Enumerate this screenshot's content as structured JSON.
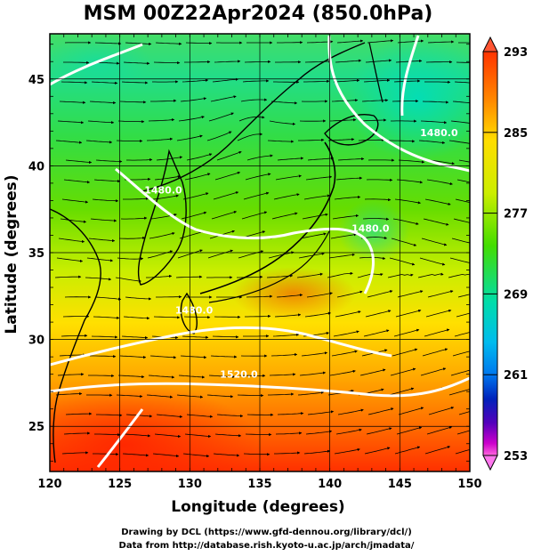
{
  "title": "MSM 00Z22Apr2024 (850.0hPa)",
  "xaxis": {
    "label": "Longitude (degrees)",
    "ticks": [
      120,
      125,
      130,
      135,
      140,
      145,
      150
    ],
    "range": [
      120,
      150
    ]
  },
  "yaxis": {
    "label": "Latitude  (degrees)",
    "ticks": [
      25,
      30,
      35,
      40,
      45
    ],
    "range": [
      22.4,
      47.6
    ]
  },
  "colorbar": {
    "labels": [
      293,
      285,
      277,
      269,
      261,
      253
    ],
    "range": [
      253,
      293
    ],
    "colors": [
      "#ff3300",
      "#ff8800",
      "#ffdd00",
      "#ccee00",
      "#44dd00",
      "#00ddaa",
      "#00bbee",
      "#0077ee",
      "#0022bb",
      "#5500bb",
      "#cc00cc",
      "#ff66dd"
    ]
  },
  "contours": [
    {
      "label": "1480.0",
      "lon": 128.1,
      "lat": 38.4
    },
    {
      "label": "1480.0",
      "lon": 142.9,
      "lat": 36.2
    },
    {
      "label": "1480.0",
      "lon": 147.8,
      "lat": 41.7
    },
    {
      "label": "1480.0",
      "lon": 130.3,
      "lat": 31.5
    },
    {
      "label": "1520.0",
      "lon": 133.5,
      "lat": 27.8
    }
  ],
  "credits": {
    "line1": "Drawing by DCL (https://www.gfd-dennou.org/library/dcl/)",
    "line2": "Data from http://database.rish.kyoto-u.ac.jp/arch/jmadata/"
  }
}
